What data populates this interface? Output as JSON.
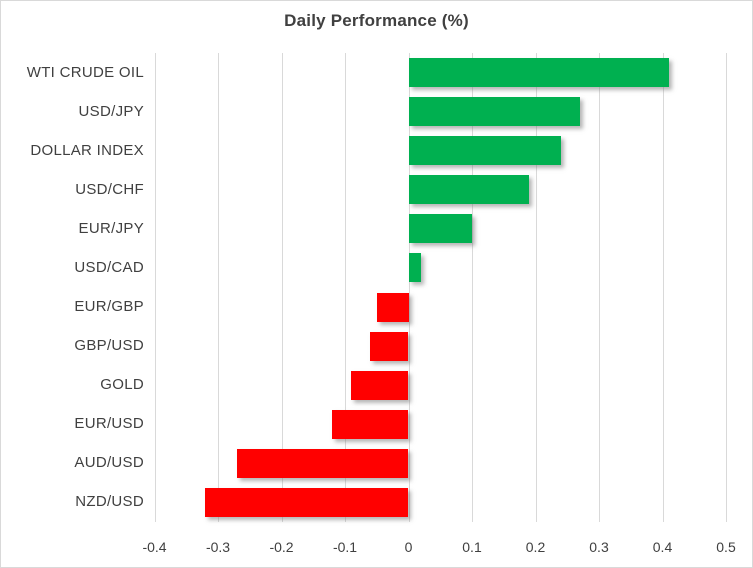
{
  "chart_data": {
    "type": "bar",
    "orientation": "horizontal",
    "title": "Daily Performance (%)",
    "categories": [
      "WTI CRUDE OIL",
      "USD/JPY",
      "DOLLAR INDEX",
      "USD/CHF",
      "EUR/JPY",
      "USD/CAD",
      "EUR/GBP",
      "GBP/USD",
      "GOLD",
      "EUR/USD",
      "AUD/USD",
      "NZD/USD"
    ],
    "values": [
      0.41,
      0.27,
      0.24,
      0.19,
      0.1,
      0.02,
      -0.05,
      -0.06,
      -0.09,
      -0.12,
      -0.27,
      -0.32
    ],
    "xlim": [
      -0.4,
      0.5
    ],
    "x_ticks": [
      "-0.4",
      "-0.3",
      "-0.2",
      "-0.1",
      "0",
      "0.1",
      "0.2",
      "0.3",
      "0.4",
      "0.5"
    ],
    "grid": true,
    "legend": "none",
    "positive_color": "#00B050",
    "negative_color": "#FF0000",
    "gridline_color": "#D9D9D9",
    "text_color": "#404040"
  }
}
